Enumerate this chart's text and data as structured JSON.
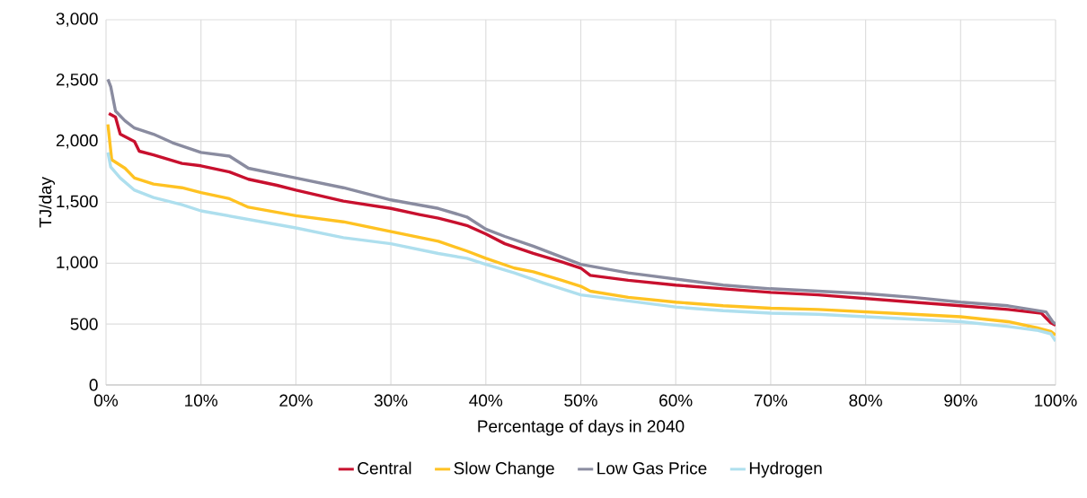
{
  "chart_data": {
    "type": "line",
    "xlabel": "Percentage of days in 2040",
    "ylabel": "TJ/day",
    "xlim": [
      0,
      100
    ],
    "ylim": [
      0,
      3000
    ],
    "xticks": [
      {
        "value": 0,
        "label": "0%"
      },
      {
        "value": 10,
        "label": "10%"
      },
      {
        "value": 20,
        "label": "20%"
      },
      {
        "value": 30,
        "label": "30%"
      },
      {
        "value": 40,
        "label": "40%"
      },
      {
        "value": 50,
        "label": "50%"
      },
      {
        "value": 60,
        "label": "60%"
      },
      {
        "value": 70,
        "label": "70%"
      },
      {
        "value": 80,
        "label": "80%"
      },
      {
        "value": 90,
        "label": "90%"
      },
      {
        "value": 100,
        "label": "100%"
      }
    ],
    "yticks": [
      0,
      500,
      {
        "value": 1000,
        "label": "1,000"
      },
      {
        "value": 1500,
        "label": "1,500"
      },
      {
        "value": 2000,
        "label": "2,000"
      },
      {
        "value": 2500,
        "label": "2,500"
      },
      {
        "value": 3000,
        "label": "3,000"
      }
    ],
    "grid": true,
    "legend": "bottom",
    "marker": "none",
    "line_style": "solid",
    "series": [
      {
        "name": "Central",
        "color": "#c8102e",
        "x": [
          0.3,
          1,
          1.5,
          3,
          3.5,
          5,
          8,
          10,
          13,
          15,
          18,
          20,
          25,
          30,
          33,
          35,
          38,
          40,
          42,
          45,
          48,
          50,
          51,
          55,
          60,
          65,
          70,
          75,
          80,
          85,
          90,
          95,
          98.5,
          99.5,
          100
        ],
        "values": [
          2230,
          2200,
          2060,
          2000,
          1920,
          1890,
          1820,
          1800,
          1750,
          1690,
          1640,
          1600,
          1510,
          1450,
          1400,
          1370,
          1310,
          1240,
          1160,
          1080,
          1010,
          960,
          900,
          860,
          820,
          790,
          760,
          740,
          710,
          680,
          650,
          620,
          590,
          510,
          490
        ]
      },
      {
        "name": "Slow Change",
        "color": "#ffc222",
        "x": [
          0.2,
          0.6,
          2,
          3,
          5,
          8,
          10,
          13,
          15,
          20,
          25,
          30,
          35,
          38,
          40,
          43,
          45,
          48,
          50,
          51,
          55,
          60,
          65,
          70,
          75,
          80,
          85,
          90,
          95,
          98,
          99.5,
          100
        ],
        "values": [
          2140,
          1850,
          1780,
          1700,
          1650,
          1620,
          1580,
          1530,
          1460,
          1390,
          1340,
          1260,
          1180,
          1100,
          1040,
          960,
          930,
          860,
          810,
          770,
          720,
          680,
          650,
          630,
          620,
          600,
          580,
          560,
          520,
          470,
          440,
          410
        ]
      },
      {
        "name": "Low Gas Price",
        "color": "#8a8ca0",
        "x": [
          0.2,
          0.5,
          1,
          2,
          3,
          5,
          7,
          10,
          13,
          15,
          20,
          25,
          30,
          35,
          38,
          40,
          42,
          45,
          48,
          50,
          55,
          60,
          65,
          70,
          75,
          80,
          85,
          90,
          95,
          99,
          99.7,
          100
        ],
        "values": [
          2510,
          2450,
          2250,
          2170,
          2110,
          2060,
          1990,
          1910,
          1880,
          1780,
          1700,
          1620,
          1520,
          1450,
          1380,
          1280,
          1220,
          1140,
          1050,
          990,
          920,
          870,
          820,
          790,
          770,
          750,
          720,
          680,
          650,
          600,
          520,
          500
        ]
      },
      {
        "name": "Hydrogen",
        "color": "#aedfee",
        "x": [
          0.2,
          0.5,
          1.5,
          3,
          5,
          8,
          10,
          15,
          20,
          25,
          30,
          35,
          38,
          40,
          43,
          46,
          48,
          50,
          55,
          60,
          65,
          70,
          75,
          80,
          85,
          90,
          95,
          98,
          99.5,
          100
        ],
        "values": [
          1910,
          1790,
          1700,
          1600,
          1540,
          1480,
          1430,
          1360,
          1290,
          1210,
          1160,
          1080,
          1040,
          990,
          920,
          840,
          790,
          740,
          690,
          640,
          610,
          590,
          580,
          560,
          540,
          520,
          480,
          450,
          420,
          360
        ]
      }
    ]
  }
}
